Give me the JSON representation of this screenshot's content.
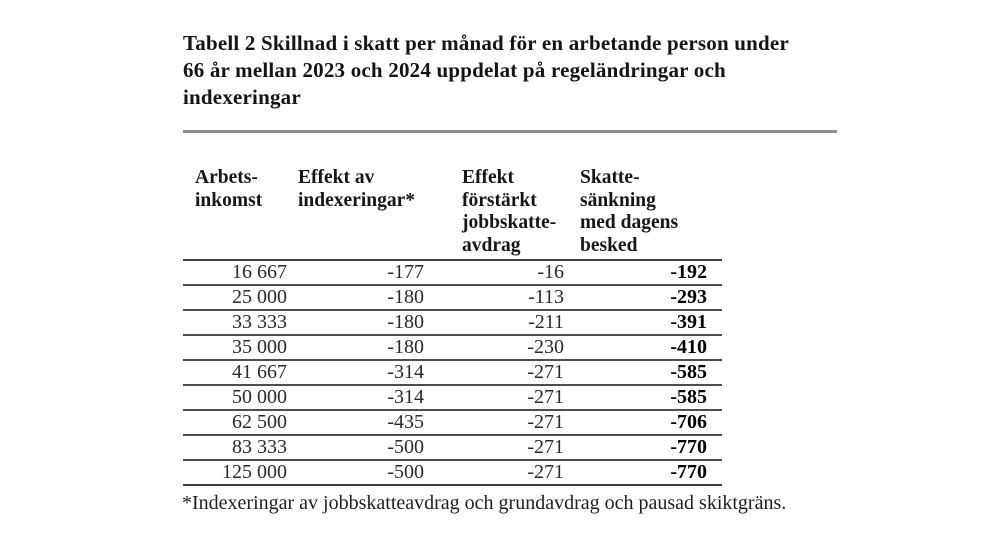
{
  "title": {
    "lines": [
      "Tabell 2 Skillnad i skatt per månad för en arbetande person under",
      "66 år mellan 2023 och 2024 uppdelat på regeländringar och",
      "indexeringar"
    ]
  },
  "table": {
    "columns": [
      {
        "label": "Arbets-\ninkomst"
      },
      {
        "label": "Effekt av\nindexeringar*"
      },
      {
        "label": "Effekt\nförstärkt\njobbskatte-\navdrag"
      },
      {
        "label": "Skatte-\nsänkning\nmed dagens\nbesked"
      }
    ],
    "rows": [
      [
        "16 667",
        "-177",
        "-16",
        "-192"
      ],
      [
        "25 000",
        "-180",
        "-113",
        "-293"
      ],
      [
        "33 333",
        "-180",
        "-211",
        "-391"
      ],
      [
        "35 000",
        "-180",
        "-230",
        "-410"
      ],
      [
        "41 667",
        "-314",
        "-271",
        "-585"
      ],
      [
        "50 000",
        "-314",
        "-271",
        "-585"
      ],
      [
        "62 500",
        "-435",
        "-271",
        "-706"
      ],
      [
        "83 333",
        "-500",
        "-271",
        "-770"
      ],
      [
        "125 000",
        "-500",
        "-271",
        "-770"
      ]
    ]
  },
  "footnote": "*Indexeringar av jobbskatteavdrag och grundavdrag och pausad skiktgräns.",
  "colors": {
    "background": "#ffffff",
    "text": "#1b1b1b",
    "title_rule": "#8d8d8d",
    "table_line": "#4d4d4d"
  }
}
